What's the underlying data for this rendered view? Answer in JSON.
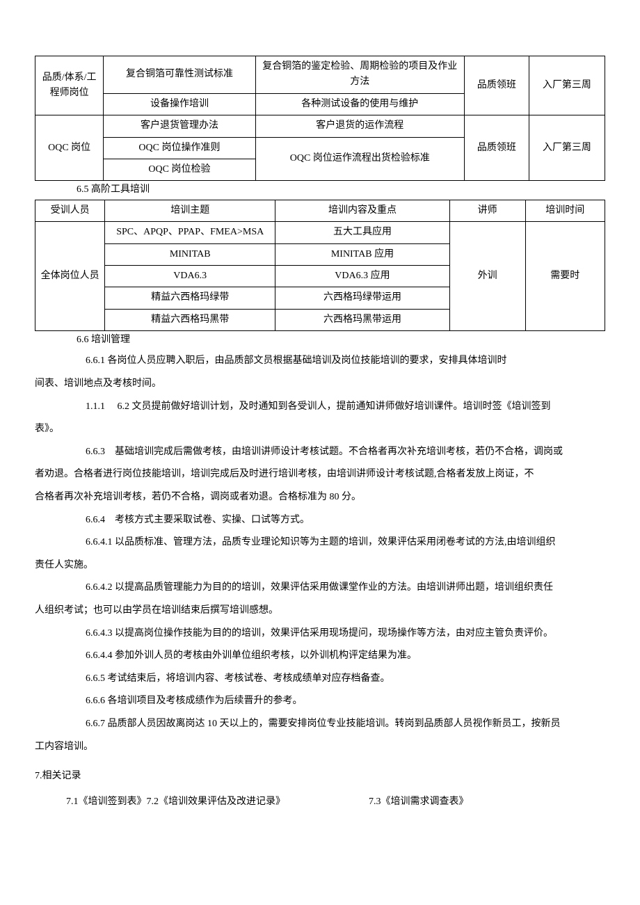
{
  "table1": {
    "rows": [
      {
        "role": "品质/体系/工程师岗位",
        "subjects": [
          {
            "topic": "复合铜箔可靠性测试标准",
            "content": "复合铜箔的鉴定检验、周期检验的项目及作业方法"
          },
          {
            "topic": "设备操作培训",
            "content": "各种测试设备的使用与维护"
          }
        ],
        "lecturer": "品质领班",
        "time": "入厂第三周"
      },
      {
        "role": "OQC 岗位",
        "subjects": [
          {
            "topic": "客户退货管理办法",
            "content": "客户退货的运作流程"
          },
          {
            "topic": "OQC 岗位操作准则",
            "content": "OQC 岗位运作流程出货检验标准"
          },
          {
            "topic": "OQC 岗位检验",
            "content": ""
          }
        ],
        "lecturer": "品质领班",
        "time": "入厂第三周"
      }
    ]
  },
  "section65": "6.5 高阶工具培训",
  "table2": {
    "headers": [
      "受训人员",
      "培训主题",
      "培训内容及重点",
      "讲师",
      "培训时间"
    ],
    "role": "全体岗位人员",
    "rows": [
      {
        "topic": "SPC、APQP、PPAP、FMEA>MSA",
        "content": "五大工具应用"
      },
      {
        "topic": "MINITAB",
        "content": "MINITAB 应用"
      },
      {
        "topic": "VDA6.3",
        "content": "VDA6.3 应用"
      },
      {
        "topic": "精益六西格玛绿带",
        "content": "六西格玛绿带运用"
      },
      {
        "topic": "精益六西格玛黑带",
        "content": "六西格玛黑带运用"
      }
    ],
    "lecturer": "外训",
    "time": "需要时"
  },
  "section66": "6.6 培训管理",
  "p661": "6.6.1 各岗位人员应聘入职后，由品质部文员根据基础培训及岗位技能培训的要求，安排具体培训时",
  "p661b": "间表、培训地点及考核时间。",
  "p111": "1.1.1　 6.2 文员提前做好培训计划，及时通知到各受训人，提前通知讲师做好培训课件。培训时签《培训签到",
  "p111b": "表》。",
  "p663": "6.6.3　基础培训完成后需做考核，由培训讲师设计考核试题。不合格者再次补充培训考核，若仍不合格，调岗或",
  "p663b": "者劝退。合格者进行岗位技能培训，培训完成后及时进行培训考核，由培训讲师设计考核试题,合格者发放上岗证，不",
  "p663c": "合格者再次补充培训考核，若仍不合格，调岗或者劝退。合格标准为 80 分。",
  "p664": "6.6.4　考核方式主要采取试卷、实操、口试等方式。",
  "p6641": "6.6.4.1 以品质标准、管理方法，品质专业理论知识等为主题的培训，效果评估采用闭卷考试的方法,由培训组织",
  "p6641b": "责任人实施。",
  "p6642": "6.6.4.2 以提高品质管理能力为目的的培训，效果评估采用做课堂作业的方法。由培训讲师出题，培训组织责任",
  "p6642b": "人组织考试；也可以由学员在培训结束后撰写培训感想。",
  "p6643": "6.6.4.3 以提高岗位操作技能为目的的培训，效果评估采用现场提问，现场操作等方法，由对应主管负责评价。",
  "p6644": "6.6.4.4 参加外训人员的考核由外训单位组织考核，以外训机构评定结果为准。",
  "p665": "6.6.5 考试结束后，将培训内容、考核试卷、考核成绩单对应存档备查。",
  "p666": "6.6.6 各培训项目及考核成绩作为后续晋升的参考。",
  "p667": "6.6.7 品质部人员因故离岗达 10 天以上的，需要安排岗位专业技能培训。转岗到品质部人员视作新员工，按新员",
  "p667b": "工内容培训。",
  "section7": "7.相关记录",
  "records": {
    "r71": "7.1《培训签到表》",
    "r72": "7.2《培训效果评估及改进记录》",
    "r73": "7.3《培训需求调查表》"
  }
}
